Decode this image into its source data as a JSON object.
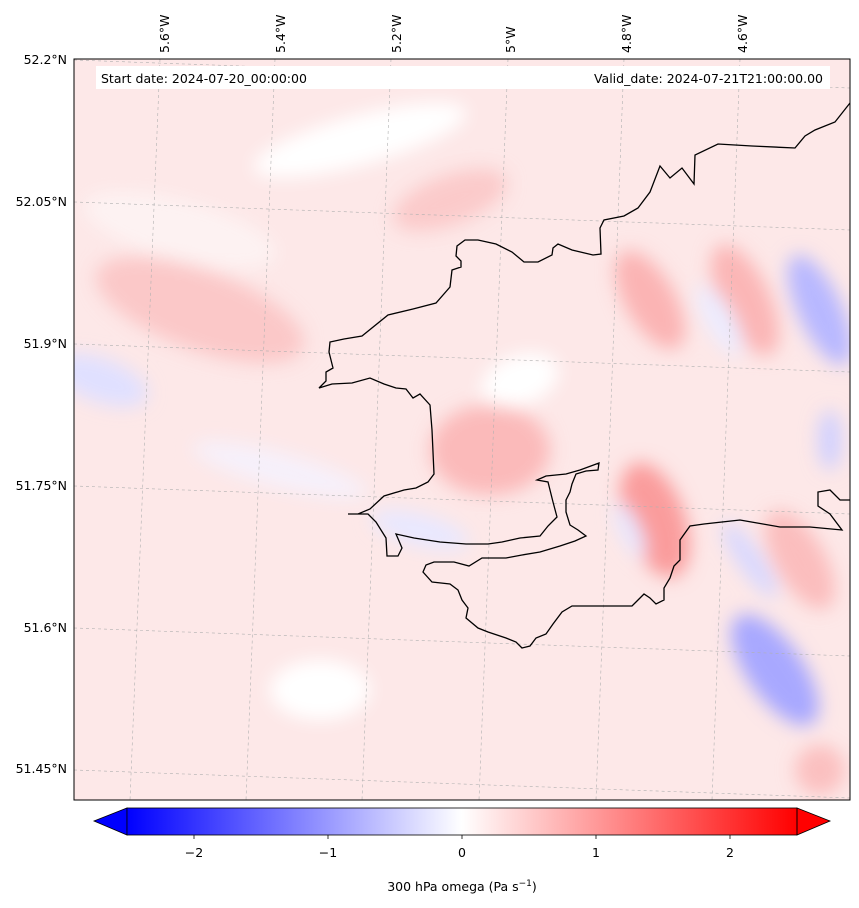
{
  "header": {
    "start_date": "Start date: 2024-07-20_00:00:00",
    "valid_date": "Valid_date: 2024-07-21T21:00:00.00"
  },
  "lon_labels": [
    "5.6°W",
    "5.4°W",
    "5.2°W",
    "5°W",
    "4.8°W",
    "4.6°W"
  ],
  "lat_labels": [
    "52.2°N",
    "52.05°N",
    "51.9°N",
    "51.75°N",
    "51.6°N",
    "51.45°N"
  ],
  "colorbar": {
    "ticks": [
      "−2",
      "−1",
      "0",
      "1",
      "2"
    ],
    "label": "300 hPa omega (Pa s",
    "label_exp": "−1",
    "label_end": ")",
    "min_color": "#0000ff",
    "mid_color": "#ffffff",
    "max_color": "#ff0000"
  },
  "colors": {
    "coastline": "#000000",
    "gridline": "#b0b0b0",
    "positive": "#ff0000",
    "negative": "#0000ff"
  }
}
